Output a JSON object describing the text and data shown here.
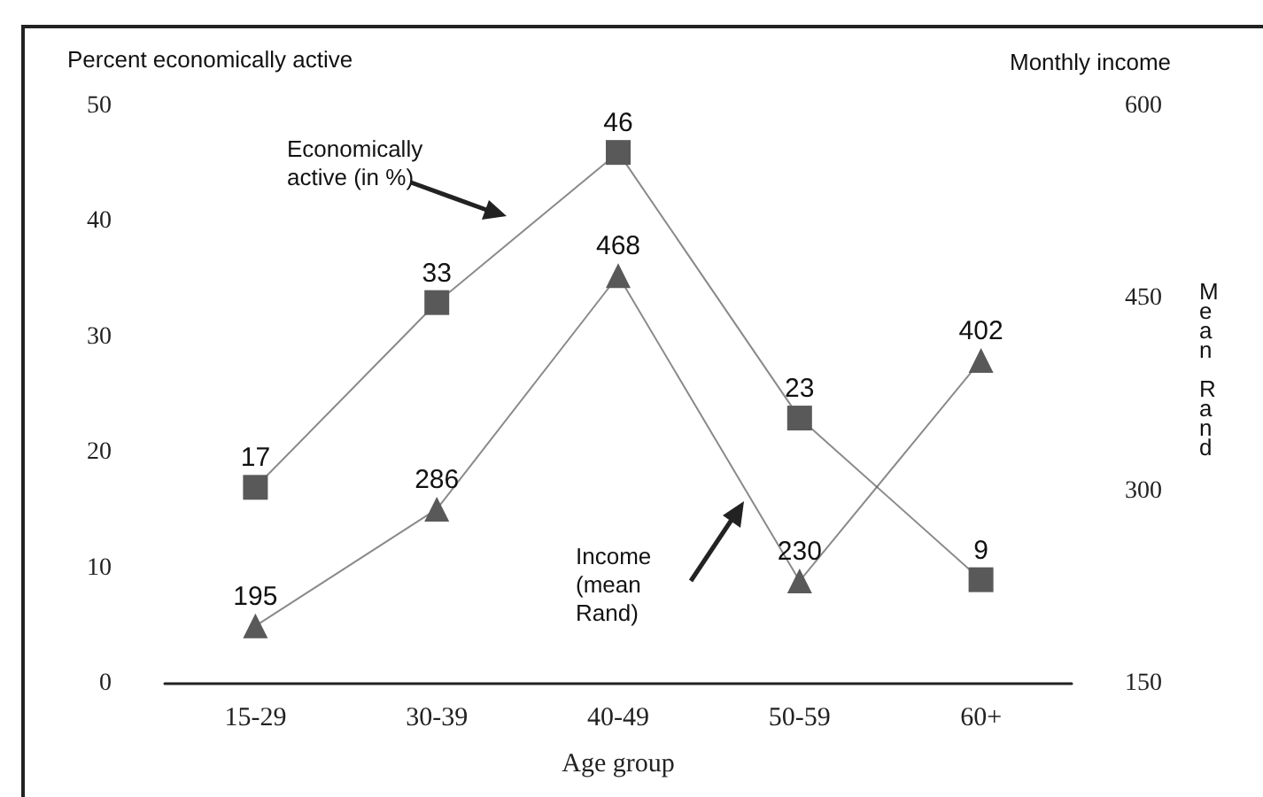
{
  "chart_data": {
    "type": "line",
    "xlabel": "Age group",
    "ylabel": "Percent economically active",
    "y2label": "Mean Rand",
    "categories": [
      "15-29",
      "30-39",
      "40-49",
      "50-59",
      "60+"
    ],
    "series": [
      {
        "values": [
          17,
          33,
          46,
          23,
          9
        ],
        "color": "#595959",
        "marker": "square"
      },
      {
        "values": [
          195,
          286,
          468,
          230,
          402
        ],
        "color": "#595959",
        "marker": "triangle",
        "axis": "y2"
      }
    ],
    "ylim": [
      0,
      50
    ],
    "yticks": [
      0,
      10,
      20,
      30,
      40,
      50
    ],
    "y2lim": [
      150,
      600
    ],
    "y2ticks": [
      150,
      300,
      450,
      600
    ],
    "annotations": [
      "Monthly income",
      "Economically active (in %)",
      "Income (mean Rand)"
    ],
    "data_labels": true,
    "grid": false,
    "line_style": "solid"
  }
}
